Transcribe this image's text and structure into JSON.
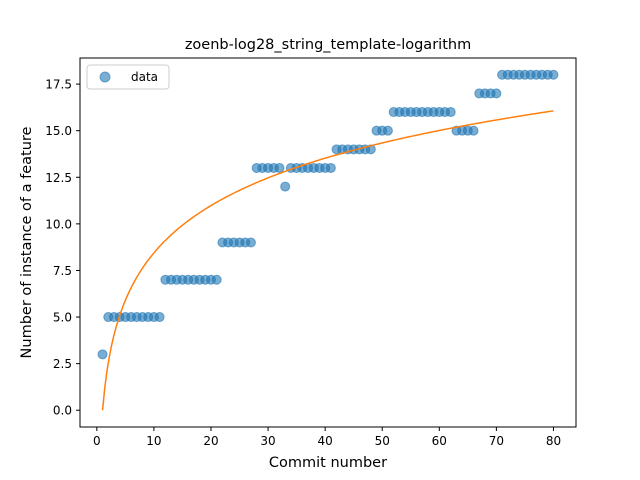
{
  "chart_data": {
    "type": "scatter",
    "title": "zoenb-log28_string_template-logarithm",
    "xlabel": "Commit number",
    "ylabel": "Number of instance of a feature",
    "xlim": [
      -2.95,
      83.95
    ],
    "ylim": [
      -0.9,
      18.9
    ],
    "x_ticks": [
      0,
      10,
      20,
      30,
      40,
      50,
      60,
      70,
      80
    ],
    "y_ticks": [
      0.0,
      2.5,
      5.0,
      7.5,
      10.0,
      12.5,
      15.0,
      17.5
    ],
    "x_tick_labels": [
      "0",
      "10",
      "20",
      "30",
      "40",
      "50",
      "60",
      "70",
      "80"
    ],
    "y_tick_labels": [
      "0.0",
      "2.5",
      "5.0",
      "7.5",
      "10.0",
      "12.5",
      "15.0",
      "17.5"
    ],
    "legend": {
      "position": "upper-left",
      "entries": [
        "data"
      ]
    },
    "grid": false,
    "series": [
      {
        "name": "data",
        "kind": "scatter",
        "color": "#1f77b4",
        "x": [
          1,
          2,
          3,
          4,
          5,
          6,
          7,
          8,
          9,
          10,
          11,
          12,
          13,
          14,
          15,
          16,
          17,
          18,
          19,
          20,
          21,
          22,
          23,
          24,
          25,
          26,
          27,
          28,
          29,
          30,
          31,
          32,
          33,
          34,
          35,
          36,
          37,
          38,
          39,
          40,
          41,
          42,
          43,
          44,
          45,
          46,
          47,
          48,
          49,
          50,
          51,
          52,
          53,
          54,
          55,
          56,
          57,
          58,
          59,
          60,
          61,
          62,
          63,
          64,
          65,
          66,
          67,
          68,
          69,
          70,
          71,
          72,
          73,
          74,
          75,
          76,
          77,
          78,
          79,
          80
        ],
        "y": [
          3,
          5,
          5,
          5,
          5,
          5,
          5,
          5,
          5,
          5,
          5,
          7,
          7,
          7,
          7,
          7,
          7,
          7,
          7,
          7,
          7,
          9,
          9,
          9,
          9,
          9,
          9,
          13,
          13,
          13,
          13,
          13,
          12,
          13,
          13,
          13,
          13,
          13,
          13,
          13,
          13,
          14,
          14,
          14,
          14,
          14,
          14,
          14,
          15,
          15,
          15,
          16,
          16,
          16,
          16,
          16,
          16,
          16,
          16,
          16,
          16,
          16,
          15,
          15,
          15,
          15,
          17,
          17,
          17,
          17,
          18,
          18,
          18,
          18,
          18,
          18,
          18,
          18,
          18,
          18
        ]
      },
      {
        "kind": "line",
        "color": "#ff7f0e",
        "x_start": 1,
        "x_end": 80,
        "model": "log",
        "a": 3.666,
        "b": 0
      }
    ]
  }
}
